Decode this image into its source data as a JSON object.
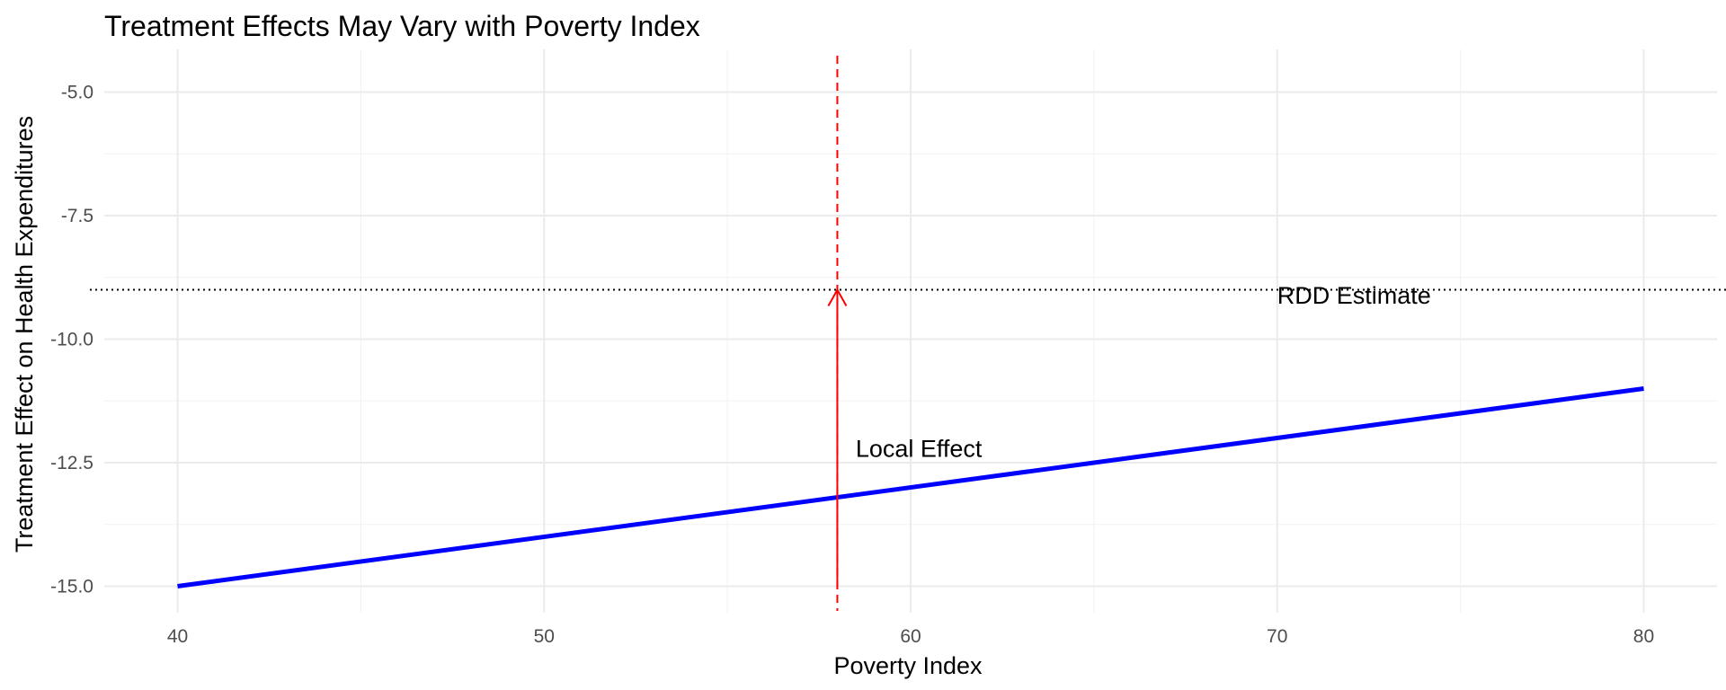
{
  "chart_data": {
    "type": "line",
    "title": "Treatment Effects May Vary with Poverty Index",
    "xlabel": "Poverty Index",
    "ylabel": "Treatment Effect on Health Expenditures",
    "xlim": [
      38,
      82
    ],
    "ylim": [
      -15.5,
      -4.5
    ],
    "x_ticks": [
      40,
      50,
      60,
      70,
      80
    ],
    "x_tick_labels": [
      "40",
      "50",
      "60",
      "70",
      "80"
    ],
    "y_ticks": [
      -5.0,
      -7.5,
      -10.0,
      -12.5,
      -15.0
    ],
    "y_tick_labels": [
      "-5.0",
      "-7.5",
      "-10.0",
      "-12.5",
      "-15.0"
    ],
    "grid": true,
    "series": [
      {
        "color": "#0000ff",
        "x": [
          40,
          80
        ],
        "y": [
          -15.0,
          -11.0
        ]
      }
    ],
    "reference_lines": [
      {
        "orientation": "vertical",
        "value": 58,
        "style": "dashed",
        "color": "#ff0000"
      },
      {
        "orientation": "horizontal",
        "value": -9.0,
        "style": "dotted",
        "color": "#000000"
      }
    ],
    "arrow": {
      "x": 58,
      "y_start": -15.0,
      "y_end": -9.0,
      "color": "#ff0000"
    },
    "annotations": [
      {
        "text": "Local Effect",
        "x": 58.5,
        "y": -12.2
      },
      {
        "text": "RDD Estimate",
        "x": 70,
        "y": -9.1
      }
    ]
  }
}
